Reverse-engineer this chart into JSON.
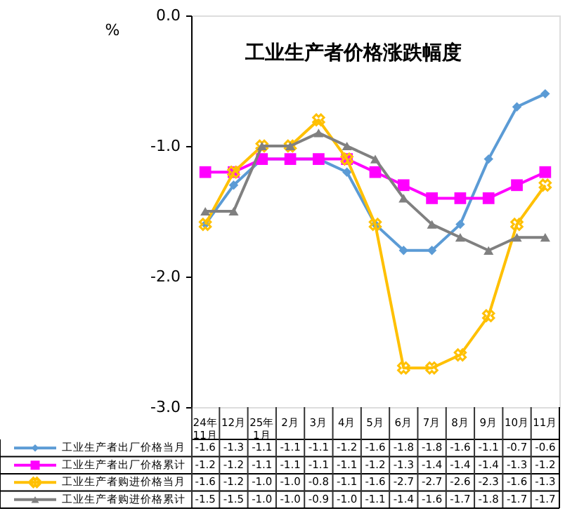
{
  "chart_data": {
    "type": "line",
    "title": "工业生产者价格涨跌幅度",
    "ylabel": "%",
    "categories": [
      "24年11月",
      "12月",
      "25年1月",
      "2月",
      "3月",
      "4月",
      "5月",
      "6月",
      "7月",
      "8月",
      "9月",
      "10月",
      "11月"
    ],
    "series": [
      {
        "name": "工业生产者出厂价格当月",
        "color": "#5b9bd5",
        "marker": "diamond",
        "values": [
          -1.6,
          -1.3,
          -1.1,
          -1.1,
          -1.1,
          -1.2,
          -1.6,
          -1.8,
          -1.8,
          -1.6,
          -1.1,
          -0.7,
          -0.6
        ],
        "value_labels": [
          "-1.6",
          "-1.3",
          "-1.1",
          "-1.1",
          "-1.1",
          "-1.2",
          "-1.6",
          "-1.8",
          "-1.8",
          "-1.6",
          "-1.1",
          "-0.7",
          "-0.6"
        ]
      },
      {
        "name": "工业生产者出厂价格累计",
        "color": "#ff00ff",
        "marker": "square",
        "values": [
          -1.2,
          -1.2,
          -1.1,
          -1.1,
          -1.1,
          -1.1,
          -1.2,
          -1.3,
          -1.4,
          -1.4,
          -1.4,
          -1.3,
          -1.2
        ],
        "value_labels": [
          "-1.2",
          "-1.2",
          "-1.1",
          "-1.1",
          "-1.1",
          "-1.1",
          "-1.2",
          "-1.3",
          "-1.4",
          "-1.4",
          "-1.4",
          "-1.3",
          "-1.2"
        ]
      },
      {
        "name": "工业生产者购进价格当月",
        "color": "#ffc000",
        "marker": "cross",
        "values": [
          -1.6,
          -1.2,
          -1.0,
          -1.0,
          -0.8,
          -1.1,
          -1.6,
          -2.7,
          -2.7,
          -2.6,
          -2.3,
          -1.6,
          -1.3
        ],
        "value_labels": [
          "-1.6",
          "-1.2",
          "-1.0",
          "-1.0",
          "-0.8",
          "-1.1",
          "-1.6",
          "-2.7",
          "-2.7",
          "-2.6",
          "-2.3",
          "-1.6",
          "-1.3"
        ]
      },
      {
        "name": "工业生产者购进价格累计",
        "color": "#808080",
        "marker": "triangle",
        "values": [
          -1.5,
          -1.5,
          -1.0,
          -1.0,
          -0.9,
          -1.0,
          -1.1,
          -1.4,
          -1.6,
          -1.7,
          -1.8,
          -1.7,
          -1.7
        ],
        "value_labels": [
          "-1.5",
          "-1.5",
          "-1.0",
          "-1.0",
          "-0.9",
          "-1.0",
          "-1.1",
          "-1.4",
          "-1.6",
          "-1.7",
          "-1.8",
          "-1.7",
          "-1.7"
        ]
      }
    ],
    "ylim": [
      -3,
      0
    ],
    "yticks": [
      {
        "value": 0,
        "label": "0.0"
      },
      {
        "value": -1,
        "label": "-1.0"
      },
      {
        "value": -2,
        "label": "-2.0"
      },
      {
        "value": -3,
        "label": "-3.0"
      }
    ],
    "legend": "bottom"
  }
}
